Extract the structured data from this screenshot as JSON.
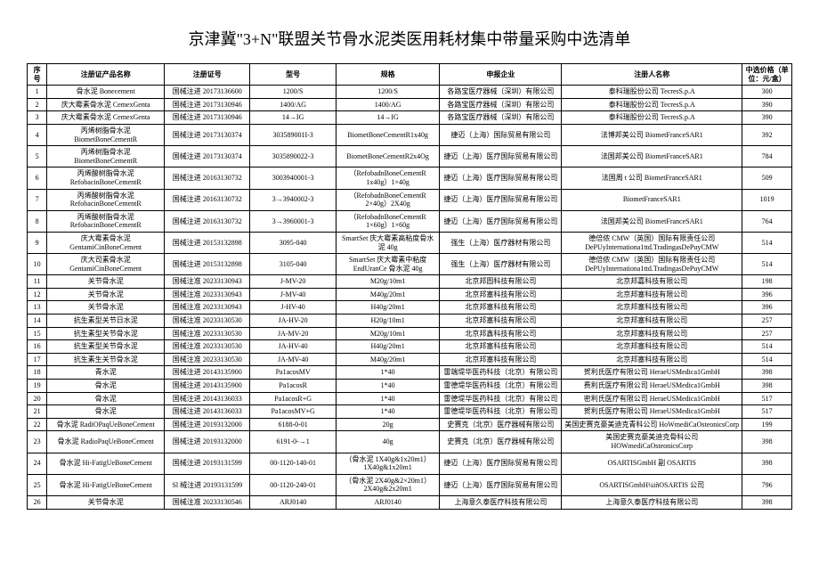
{
  "title": "京津冀\"3+N\"联盟关节骨水泥类医用耗材集中带量采购中选清单",
  "headers": {
    "seq": "序号",
    "name": "注册证产品名称",
    "reg": "注册证号",
    "model": "型号",
    "spec": "规格",
    "company": "申报企业",
    "person": "注册人名称",
    "price": "中选价格（单位：元/盒）"
  },
  "rows": [
    {
      "seq": "1",
      "name": "骨水泥 Bonecement",
      "reg": "国械注进 20173136600",
      "model": "1200/S",
      "spec": "1200/S",
      "company": "各路宝医疗器械（深圳）有限公司",
      "person": "泰科瑞股份公司 TecresS.p.A",
      "price": "300"
    },
    {
      "seq": "2",
      "name": "庆大霉素骨水泥 CemexGenta",
      "reg": "国械注进 20173130946",
      "model": "1400/AG",
      "spec": "1400/AG",
      "company": "各路宝医疗器械（深圳）有限公司",
      "person": "泰科瑞股份公司 TecresS.p.A",
      "price": "390"
    },
    {
      "seq": "3",
      "name": "庆大霉素骨水泥 CemexGenta",
      "reg": "国械注进 20173130946",
      "model": "14→IG",
      "spec": "14→IG",
      "company": "各路宝医疗器械（深圳）有限公司",
      "person": "泰科瑞股份公司 TecresS.p.A",
      "price": "390"
    },
    {
      "seq": "4",
      "name": "丙烯树脂骨水泥 BiometBoneCementR",
      "reg": "国械注进 20173130374",
      "model": "303589001I-3",
      "spec": "BiometBoneCementR1x40g",
      "company": "捷迈（上海）国际贸易有限公司",
      "person": "法博邦美公司 BiometFranceSAR1",
      "price": "392"
    },
    {
      "seq": "5",
      "name": "丙烯树脂骨水泥 BiometBoneCementR",
      "reg": "国械注进 20173130374",
      "model": "3035890022-3",
      "spec": "BiometBoneCementR2x4Og",
      "company": "捷迈（上海）医疗国际贸易有限公司",
      "person": "法国邦美公司 BiometFranceSAR1",
      "price": "784"
    },
    {
      "seq": "6",
      "name": "丙烯酸树脂骨水泥 RefobacinBoneCementR",
      "reg": "国械注进 20163130732",
      "model": "3003940001-3",
      "spec": "（RefobadnBoneCementR 1x40g）1×40g",
      "company": "捷迈（上海）医疗国际贸易有限公司",
      "person": "法国周 t 公司 BiometFranceSAR1",
      "price": "509"
    },
    {
      "seq": "7",
      "name": "丙烯酸树脂骨水泥 RefobacinBoneCementR",
      "reg": "国械注进 20163130732",
      "model": "3→3940002-3",
      "spec": "（RefobadnBoneCementR 2×40g）2X40g",
      "company": "捷迈（上海）医疗国际贸易有限公司",
      "person": "BiometFranceSAR1",
      "price": "1019"
    },
    {
      "seq": "8",
      "name": "丙烯酸树脂骨水泥 RefobacinBoneCementR",
      "reg": "国械注进 20163130732",
      "model": "3→3960001-3",
      "spec": "（RefobadnBoneCementR 1×60g）1×60g",
      "company": "捷迈（上海）医疗国际贸易有限公司",
      "person": "法国邦美公司 BiometFranceSAR1",
      "price": "764"
    },
    {
      "seq": "9",
      "name": "庆大霉素骨水泥 GentamiCinBoneCement",
      "reg": "国械注进 20153132898",
      "model": "3095-040",
      "spec": "SmartSet 庆大霉素高粘度骨水泥 40g",
      "company": "强生（上海）医疗器材有限公司",
      "person": "德倍侬 CMW（英国）国际有限责任公司 DePUyInternationa1ttd.TradingasDePuyCMW",
      "price": "514"
    },
    {
      "seq": "10",
      "name": "庆大司素骨水泥 GentamiCinBoneCement",
      "reg": "国械注进 20153132898",
      "model": "3105-040",
      "spec": "SmartSet 庆大霉素中粘度 EndUranCe 骨水泥 40g",
      "company": "强生（上海）医疗器材有限公司",
      "person": "德倍侬 CMW（英国）国际有限责任公司 DePUyInternationa1ttd.TradingasDePuyCMW",
      "price": "514"
    },
    {
      "seq": "11",
      "name": "关节骨水泥",
      "reg": "国械注准 20233130943",
      "model": "J-MV-20",
      "spec": "M20g/10m1",
      "company": "北京邦圄科技有限公司",
      "person": "北京邦嘉科技有限公司",
      "price": "198"
    },
    {
      "seq": "12",
      "name": "关节骨水泥",
      "reg": "国械注准 20233130943",
      "model": "J-MV-40",
      "spec": "M40g/20m1",
      "company": "北京邦塞科技有限公司",
      "person": "北京邦塞科技有限公司",
      "price": "396"
    },
    {
      "seq": "13",
      "name": "关节骨水泥",
      "reg": "国械注准 20233130943",
      "model": "J-HV-40",
      "spec": "H40g/20m1",
      "company": "北京邦塞科技有限公司",
      "person": "北京邦塞科技有限公司",
      "price": "396"
    },
    {
      "seq": "14",
      "name": "抗生素型关节⽇水泥",
      "reg": "国械注准 20233130530",
      "model": "JA-HV-20",
      "spec": "H20g/10m1",
      "company": "北京邦塞科技有限公司",
      "person": "北京邦塞科技有限公司",
      "price": "257"
    },
    {
      "seq": "15",
      "name": "抗生素型关节骨水泥",
      "reg": "国械注准 20233130530",
      "model": "JA-MV-20",
      "spec": "M20g/10m1",
      "company": "北京邦鑫科技有限公司",
      "person": "北京邦塞科技有限公司",
      "price": "257"
    },
    {
      "seq": "16",
      "name": "抗生素型关节骨水泥",
      "reg": "国械注准 20233130530",
      "model": "JA-HV-40",
      "spec": "H40g/20m1",
      "company": "北京邦塞科技有限公司",
      "person": "北京邦塞科技有限公司",
      "price": "514"
    },
    {
      "seq": "17",
      "name": "抗生素生关节骨水泥",
      "reg": "国械注准 20233130530",
      "model": "JA-MV-40",
      "spec": "M40g/20m1",
      "company": "北京邦塞科技有限公司",
      "person": "北京邦塞科技有限公司",
      "price": "514"
    },
    {
      "seq": "18",
      "name": "青水泥",
      "reg": "国械注进 20143135900",
      "model": "Pa1acosMV",
      "spec": "1*40",
      "company": "雷端堤华医药科技（北京）有限公司",
      "person": "贺利氏医疗有限公司 HeraeUSMedica1GmbH",
      "price": "398"
    },
    {
      "seq": "19",
      "name": "骨水泥",
      "reg": "国械注进 20143135900",
      "model": "Pa1acosR",
      "spec": "1*40",
      "company": "雷德堤华医药科技（北京）有限公司",
      "person": "费利氏医疗有限公司 HeraeUSMedica1GmbH",
      "price": "398"
    },
    {
      "seq": "20",
      "name": "骨水泥",
      "reg": "国械注进 20143136033",
      "model": "Pa1acosR+G",
      "spec": "1*40",
      "company": "雷德堤华医药科技（北京）有限公司",
      "person": "密利氏医疗有限公司 HeraeUSMedica1GmbH",
      "price": "517"
    },
    {
      "seq": "21",
      "name": "骨水泥",
      "reg": "国械注进 20143136033",
      "model": "Pa1acosMV+G",
      "spec": "1*40",
      "company": "雷德堤华医药科技（北京）有限公司",
      "person": "贺利氏医疗有限公司 HeraeUSMedica1GmbH",
      "price": "517"
    },
    {
      "seq": "22",
      "name": "骨水泥 RadiOPaqUeBoneCement",
      "reg": "国械注进 20193132000",
      "model": "6188-0-01",
      "spec": "20g",
      "company": "史赛克（北京）医疗器械有限公司",
      "person": "美国史赛克豪美迪克青科公司 HoWmediCaOsteonicsCorp",
      "price": "199"
    },
    {
      "seq": "23",
      "name": "骨水泥 RadioPaqUeBoneCement",
      "reg": "国械注进 20193132000",
      "model": "6191-0-→1",
      "spec": "40g",
      "company": "史赛克（北京）医疗器械有限公司",
      "person": "美国史赛克豪美迪克骨科公司 HOWmediCaOsteonicsCorp",
      "price": "398"
    },
    {
      "seq": "24",
      "name": "骨水泥 Hi-FatigUeBoneCement",
      "reg": "国械注进 20193131599",
      "model": "00-1120-140-01",
      "spec": "（骨水泥 1X40g&1x20m1）1X40g&1x20m1",
      "company": "捷迈（上海）医疗国际贸易有限公司",
      "person": "OSARTISGmbH 副 OSARTIS",
      "price": "398"
    },
    {
      "seq": "25",
      "name": "骨水泥 Hi-FatigUeBoneCement",
      "reg": "Sl 械注进 20193131599",
      "model": "00-1120-240-01",
      "spec": "（骨水泥 2X40g&2×20m1）2X40g&2x20m1",
      "company": "捷迈（上海）医疗国际贸易有限公司",
      "person": "OSARTISGmbH¼iñOSARTIS 公司",
      "price": "796"
    },
    {
      "seq": "26",
      "name": "关节骨水泥",
      "reg": "国械注准 20233130546",
      "model": "ARJ0140",
      "spec": "ARJ0140",
      "company": "上海意久泰医疗科技有限公司",
      "person": "上海意久泰医疗科技有限公司",
      "price": "398"
    }
  ]
}
